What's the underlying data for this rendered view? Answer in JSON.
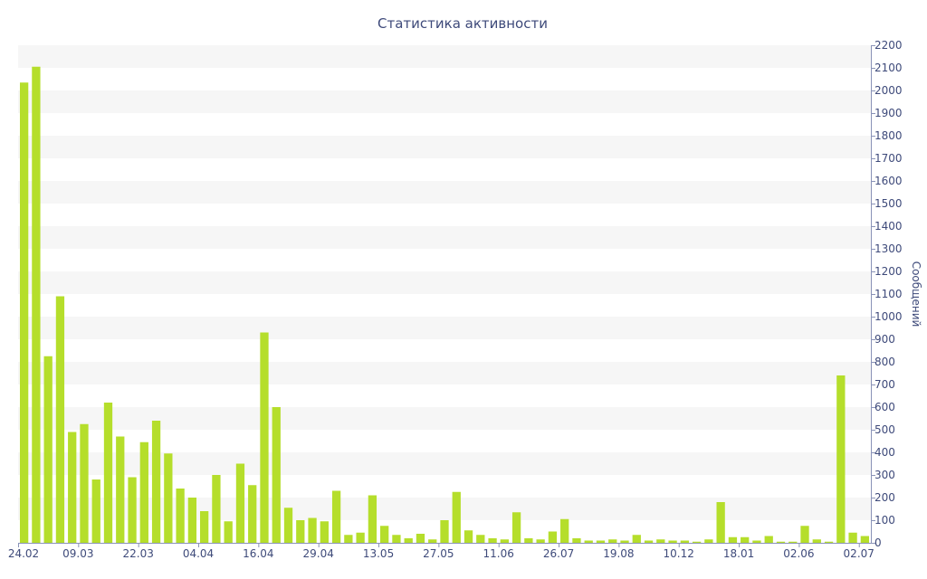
{
  "chart_data": {
    "type": "bar",
    "title": "Статистика активности",
    "ylabel": "Сообщений",
    "xlabel": "",
    "ylim": [
      0,
      2200
    ],
    "y_ticks": [
      0,
      100,
      200,
      300,
      400,
      500,
      600,
      700,
      800,
      900,
      1000,
      1100,
      1200,
      1300,
      1400,
      1500,
      1600,
      1700,
      1800,
      1900,
      2000,
      2100,
      2200
    ],
    "x_tick_labels": [
      "24.02",
      "09.03",
      "22.03",
      "04.04",
      "16.04",
      "29.04",
      "13.05",
      "27.05",
      "11.06",
      "26.07",
      "19.08",
      "10.12",
      "18.01",
      "02.06",
      "02.07"
    ],
    "x_tick_positions": [
      0,
      5,
      10,
      15,
      20,
      25,
      30,
      35,
      40,
      45,
      50,
      55,
      60,
      65,
      70
    ],
    "values": [
      2035,
      2105,
      825,
      1090,
      490,
      525,
      280,
      620,
      470,
      290,
      445,
      540,
      395,
      240,
      200,
      140,
      300,
      95,
      350,
      255,
      930,
      600,
      155,
      100,
      110,
      95,
      230,
      35,
      45,
      210,
      75,
      35,
      20,
      40,
      15,
      100,
      225,
      55,
      35,
      20,
      15,
      135,
      20,
      15,
      50,
      105,
      20,
      10,
      10,
      15,
      10,
      35,
      10,
      15,
      10,
      10,
      5,
      15,
      180,
      25,
      25,
      10,
      30,
      5,
      5,
      75,
      15,
      5,
      740,
      45,
      30
    ],
    "bar_color": "#b5de2b",
    "grid": "alternating horizontal bands",
    "y_axis_position": "right"
  }
}
